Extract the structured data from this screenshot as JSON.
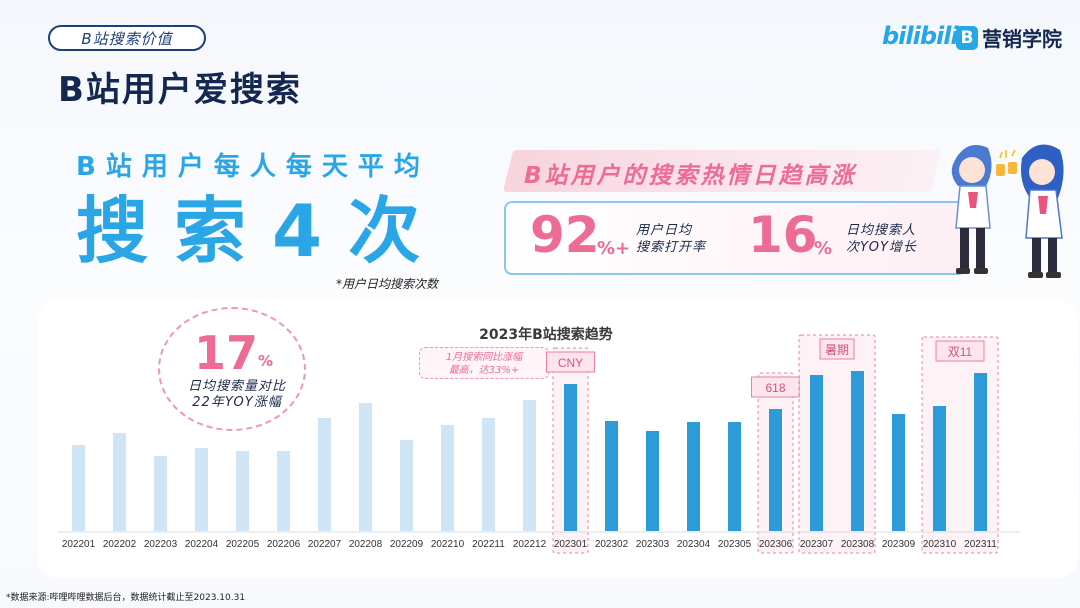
{
  "header": {
    "tag": "B站搜索价值",
    "title": "B站用户爱搜索",
    "logo_bilibili": "bilibili",
    "logo_edu_mark": "B",
    "logo_edu_label": "营销学院"
  },
  "headline": {
    "line1": "B站用户每人每天平均",
    "line2": "搜索4次",
    "note": "*用户日均搜索次数"
  },
  "passion": {
    "banner": "B站用户的搜索热情日趋高涨",
    "stat1_value": "92",
    "stat1_unit": "%+",
    "stat1_label_line1": "用户日均",
    "stat1_label_line2": "搜索打开率",
    "stat2_value": "16",
    "stat2_unit": "%",
    "stat2_label_line1": "日均搜索人",
    "stat2_label_line2": "次YOY增长"
  },
  "yoy": {
    "value": "17",
    "unit": "%",
    "label_line1": "日均搜索量对比",
    "label_line2": "22年YOY涨幅"
  },
  "chart_data": {
    "type": "bar",
    "title": "2023年B站搜索趋势",
    "categories": [
      "202201",
      "202202",
      "202203",
      "202204",
      "202205",
      "202206",
      "202207",
      "202208",
      "202209",
      "202210",
      "202211",
      "202212",
      "202301",
      "202302",
      "202303",
      "202304",
      "202305",
      "202306",
      "202307",
      "202308",
      "202309",
      "202310",
      "202311"
    ],
    "values": [
      86,
      98,
      75,
      83,
      80,
      80,
      113,
      128,
      91,
      106,
      113,
      131,
      147,
      110,
      100,
      109,
      109,
      122,
      156,
      160,
      117,
      125,
      158
    ],
    "series_colors": {
      "2022": "#cfe5f6",
      "2023": "#2c9bd8"
    },
    "annotations": [
      {
        "label": "CNY",
        "categories": [
          "202301"
        ]
      },
      {
        "label": "618",
        "categories": [
          "202306"
        ]
      },
      {
        "label": "暑期",
        "categories": [
          "202307",
          "202308"
        ]
      },
      {
        "label": "双11",
        "categories": [
          "202310",
          "202311"
        ]
      }
    ],
    "note_line1": "1月搜索同比涨幅",
    "note_line2": "最高，达33%+",
    "ylim": [
      0,
      175
    ]
  },
  "footnote": "*数据来源:哔哩哔哩数据后台，数据统计截止至2023.10.31"
}
